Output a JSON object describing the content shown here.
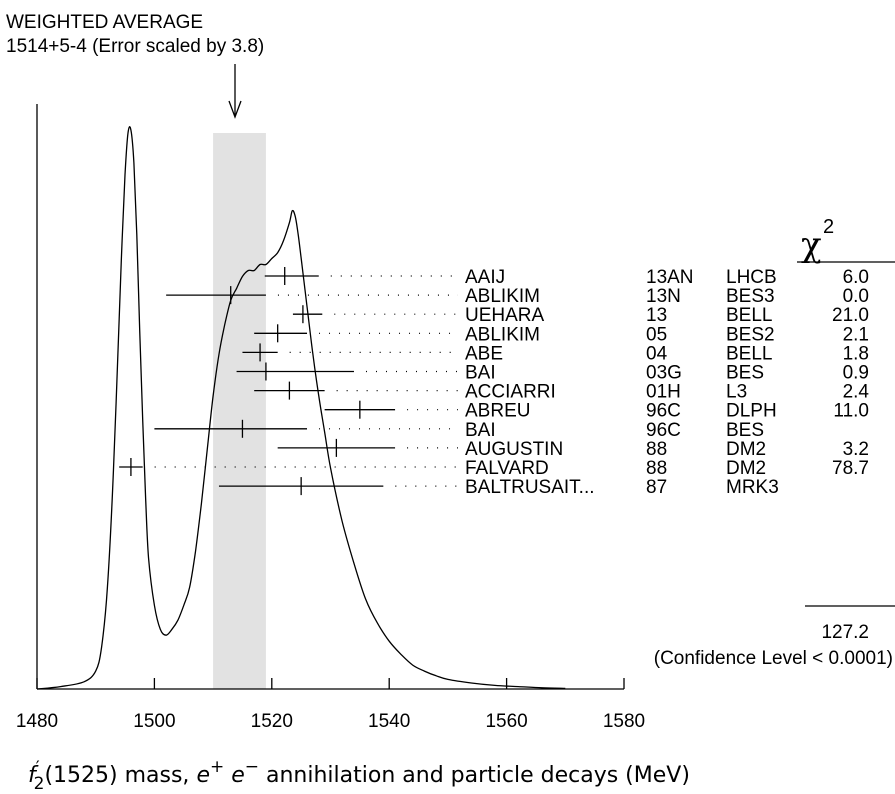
{
  "chart_data": {
    "type": "ideogram",
    "title": "WEIGHTED AVERAGE",
    "subtitle": "1514+5-4 (Error scaled by 3.8)",
    "xlabel": "f′₂(1525) mass, e⁺ e⁻ annihilation and particle decays (MeV)",
    "xlabel_parts": {
      "f": "f",
      "prime": "′",
      "sub": "2",
      "rest1": "(1525) mass, ",
      "e1": "e",
      "plus": "+",
      "e2": " e",
      "minus": "−",
      "rest2": " annihilation and particle decays (MeV)"
    },
    "xlim": [
      1480,
      1580
    ],
    "x_ticks": [
      1480,
      1500,
      1520,
      1540,
      1560,
      1580
    ],
    "x_tick_labels": [
      "1480",
      "1500",
      "1520",
      "1540",
      "1560",
      "1580"
    ],
    "weighted_average": {
      "value": 1514,
      "err_plus": 5,
      "err_minus": 4,
      "band": [
        1510,
        1519
      ]
    },
    "chi2_header": "χ",
    "chi2_header_sup": "2",
    "measurements": [
      {
        "author": "AAIJ",
        "ref": "13AN",
        "expt": "LHCB",
        "chi2": "6.0",
        "value": 1522.2,
        "err_lo": 3.4,
        "err_hi": 5.8
      },
      {
        "author": "ABLIKIM",
        "ref": "13N",
        "expt": "BES3",
        "chi2": "0.0",
        "value": 1513.0,
        "err_lo": 11.0,
        "err_hi": 6.0
      },
      {
        "author": "UEHARA",
        "ref": "13",
        "expt": "BELL",
        "chi2": "21.0",
        "value": 1525.3,
        "err_lo": 1.7,
        "err_hi": 3.3
      },
      {
        "author": "ABLIKIM",
        "ref": "05",
        "expt": "BES2",
        "chi2": "2.1",
        "value": 1521.0,
        "err_lo": 4.0,
        "err_hi": 5.0
      },
      {
        "author": "ABE",
        "ref": "04",
        "expt": "BELL",
        "chi2": "1.8",
        "value": 1518.0,
        "err_lo": 3.0,
        "err_hi": 3.0
      },
      {
        "author": "BAI",
        "ref": "03G",
        "expt": "BES",
        "chi2": "0.9",
        "value": 1519.0,
        "err_lo": 5.0,
        "err_hi": 15.0
      },
      {
        "author": "ACCIARRI",
        "ref": "01H",
        "expt": "L3",
        "chi2": "2.4",
        "value": 1523.0,
        "err_lo": 6.0,
        "err_hi": 6.0
      },
      {
        "author": "ABREU",
        "ref": "96C",
        "expt": "DLPH",
        "chi2": "11.0",
        "value": 1535.0,
        "err_lo": 6.0,
        "err_hi": 6.0
      },
      {
        "author": "BAI",
        "ref": "96C",
        "expt": "BES",
        "chi2": "",
        "value": 1515.0,
        "err_lo": 15.0,
        "err_hi": 11.0
      },
      {
        "author": "AUGUSTIN",
        "ref": "88",
        "expt": "DM2",
        "chi2": "3.2",
        "value": 1531.0,
        "err_lo": 10.0,
        "err_hi": 10.0
      },
      {
        "author": "FALVARD",
        "ref": "88",
        "expt": "DM2",
        "chi2": "78.7",
        "value": 1496.0,
        "err_lo": 2.0,
        "err_hi": 2.0
      },
      {
        "author": "BALTRUSAIT...",
        "ref": "87",
        "expt": "MRK3",
        "chi2": "",
        "value": 1525.0,
        "err_lo": 14.0,
        "err_hi": 14.0
      }
    ],
    "chi2_total": "127.2",
    "confidence_level": "(Confidence Level < 0.0001)",
    "ideogram_curve": [
      [
        1480,
        0.0
      ],
      [
        1484,
        0.004
      ],
      [
        1488,
        0.012
      ],
      [
        1490,
        0.03
      ],
      [
        1491,
        0.07
      ],
      [
        1492,
        0.17
      ],
      [
        1493,
        0.36
      ],
      [
        1494,
        0.62
      ],
      [
        1494.5,
        0.75
      ],
      [
        1495,
        0.86
      ],
      [
        1495.5,
        0.93
      ],
      [
        1496,
        0.935
      ],
      [
        1496.5,
        0.88
      ],
      [
        1497,
        0.76
      ],
      [
        1497.5,
        0.6
      ],
      [
        1498,
        0.45
      ],
      [
        1498.5,
        0.32
      ],
      [
        1499,
        0.22
      ],
      [
        1500,
        0.14
      ],
      [
        1501,
        0.1
      ],
      [
        1502,
        0.09
      ],
      [
        1503,
        0.1
      ],
      [
        1504,
        0.115
      ],
      [
        1505,
        0.14
      ],
      [
        1506,
        0.17
      ],
      [
        1507,
        0.23
      ],
      [
        1508,
        0.31
      ],
      [
        1509,
        0.4
      ],
      [
        1510,
        0.49
      ],
      [
        1511,
        0.56
      ],
      [
        1512,
        0.61
      ],
      [
        1513,
        0.65
      ],
      [
        1514,
        0.67
      ],
      [
        1515,
        0.69
      ],
      [
        1516,
        0.7
      ],
      [
        1517,
        0.7
      ],
      [
        1518,
        0.71
      ],
      [
        1519,
        0.71
      ],
      [
        1520,
        0.72
      ],
      [
        1521,
        0.73
      ],
      [
        1522,
        0.75
      ],
      [
        1523,
        0.78
      ],
      [
        1523.5,
        0.8
      ],
      [
        1524,
        0.79
      ],
      [
        1524.5,
        0.76
      ],
      [
        1525,
        0.72
      ],
      [
        1526,
        0.64
      ],
      [
        1527,
        0.56
      ],
      [
        1528,
        0.49
      ],
      [
        1529,
        0.43
      ],
      [
        1530,
        0.37
      ],
      [
        1532,
        0.28
      ],
      [
        1534,
        0.21
      ],
      [
        1536,
        0.15
      ],
      [
        1538,
        0.11
      ],
      [
        1540,
        0.08
      ],
      [
        1542,
        0.058
      ],
      [
        1544,
        0.04
      ],
      [
        1546,
        0.03
      ],
      [
        1548,
        0.022
      ],
      [
        1550,
        0.016
      ],
      [
        1554,
        0.01
      ],
      [
        1558,
        0.006
      ],
      [
        1562,
        0.004
      ],
      [
        1566,
        0.002
      ],
      [
        1570,
        0.001
      ]
    ]
  }
}
